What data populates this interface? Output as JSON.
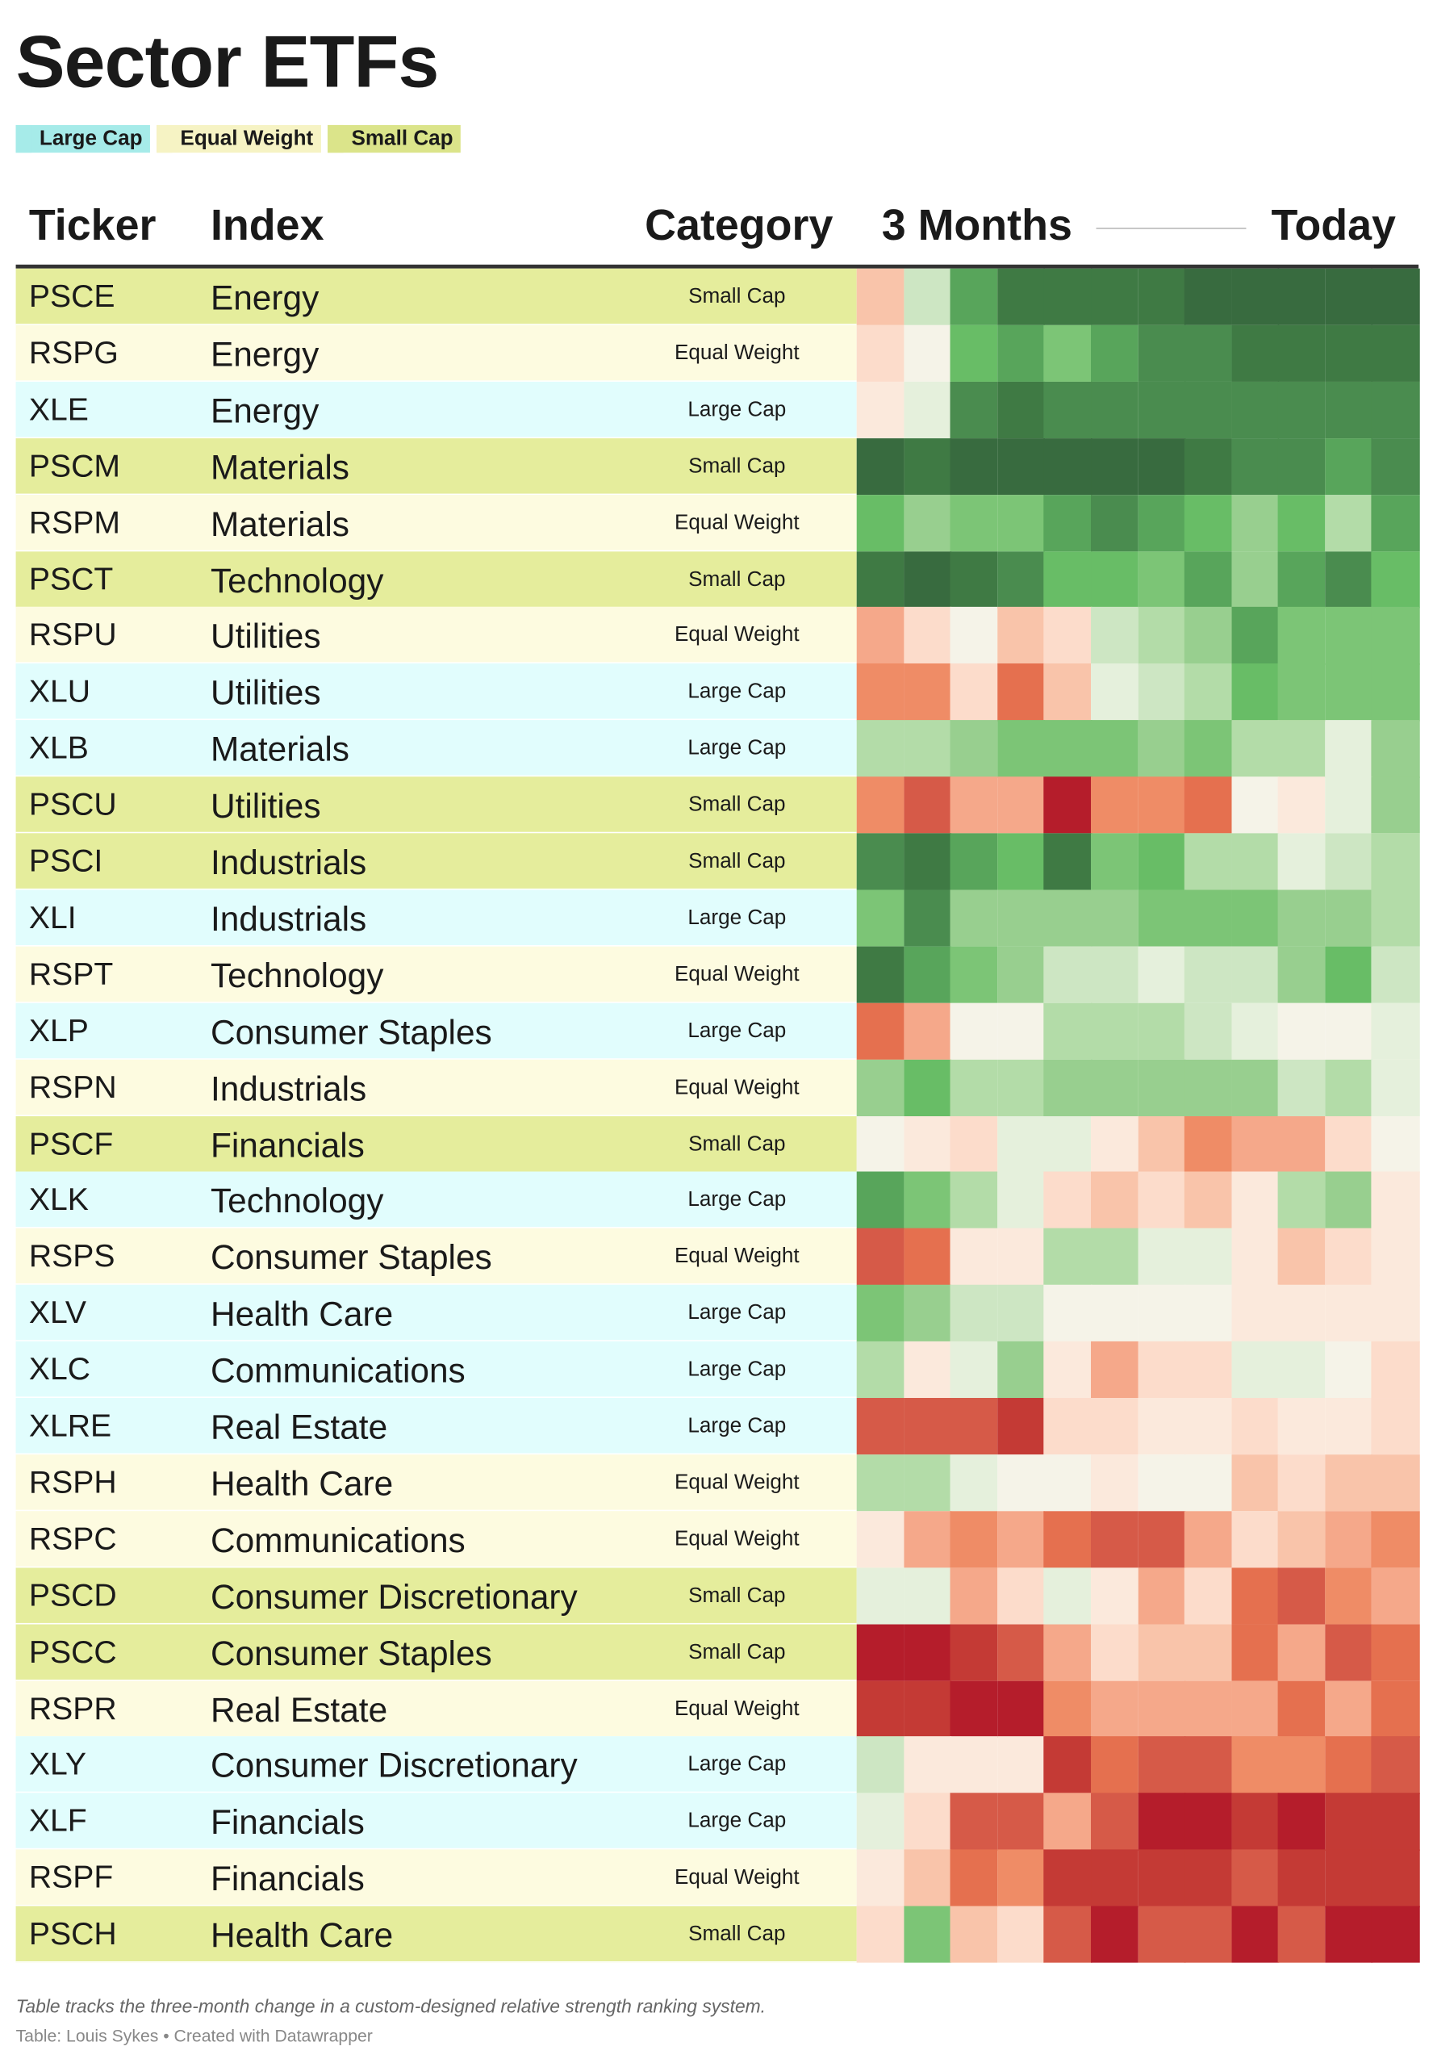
{
  "title": "Sector ETFs",
  "legend": [
    {
      "label": "Large Cap",
      "color": "#a6ebe9",
      "row_color": "#e1fdfd"
    },
    {
      "label": "Equal Weight",
      "color": "#f6f3c4",
      "row_color": "#fdfbe0"
    },
    {
      "label": "Small Cap",
      "color": "#dbe48a",
      "row_color": "#e5ed9c"
    }
  ],
  "header": {
    "ticker": "Ticker",
    "index": "Index",
    "category": "Category",
    "start": "3 Months",
    "end": "Today"
  },
  "rows": [
    {
      "ticker": "PSCE",
      "index": "Energy",
      "category": "Small Cap",
      "cells": [
        "#f9c4aa",
        "#cde6c3",
        "#58a55b",
        "#3f7a44",
        "#3f7a44",
        "#3f7a44",
        "#3f7a44",
        "#386b3f",
        "#386b3f",
        "#386b3f",
        "#386b3f",
        "#386b3f"
      ]
    },
    {
      "ticker": "RSPG",
      "index": "Energy",
      "category": "Equal Weight",
      "cells": [
        "#fcdccb",
        "#f5f3e8",
        "#68bd66",
        "#58a55b",
        "#7cc576",
        "#58a55b",
        "#4a8c4f",
        "#4a8c4f",
        "#3f7a44",
        "#3f7a44",
        "#3f7a44",
        "#3f7a44"
      ]
    },
    {
      "ticker": "XLE",
      "index": "Energy",
      "category": "Large Cap",
      "cells": [
        "#fbe9dc",
        "#e5f0dc",
        "#4a8c4f",
        "#3f7a44",
        "#4a8c4f",
        "#4a8c4f",
        "#4a8c4f",
        "#4a8c4f",
        "#4a8c4f",
        "#4a8c4f",
        "#4a8c4f",
        "#4a8c4f"
      ]
    },
    {
      "ticker": "PSCM",
      "index": "Materials",
      "category": "Small Cap",
      "cells": [
        "#386b3f",
        "#3f7a44",
        "#386b3f",
        "#386b3f",
        "#386b3f",
        "#386b3f",
        "#386b3f",
        "#3f7a44",
        "#4a8c4f",
        "#4a8c4f",
        "#58a55b",
        "#4a8c4f"
      ]
    },
    {
      "ticker": "RSPM",
      "index": "Materials",
      "category": "Equal Weight",
      "cells": [
        "#68bd66",
        "#98cf8f",
        "#7cc576",
        "#7cc576",
        "#58a55b",
        "#4a8c4f",
        "#58a55b",
        "#68bd66",
        "#98cf8f",
        "#68bd66",
        "#b3dca8",
        "#58a55b"
      ]
    },
    {
      "ticker": "PSCT",
      "index": "Technology",
      "category": "Small Cap",
      "cells": [
        "#3f7a44",
        "#386b3f",
        "#3f7a44",
        "#4a8c4f",
        "#68bd66",
        "#68bd66",
        "#7cc576",
        "#58a55b",
        "#98cf8f",
        "#58a55b",
        "#4a8c4f",
        "#68bd66"
      ]
    },
    {
      "ticker": "RSPU",
      "index": "Utilities",
      "category": "Equal Weight",
      "cells": [
        "#f5a88a",
        "#fcdccb",
        "#f5f3e8",
        "#f9c4aa",
        "#fcdccb",
        "#cde6c3",
        "#b3dca8",
        "#98cf8f",
        "#58a55b",
        "#7cc576",
        "#7cc576",
        "#7cc576"
      ]
    },
    {
      "ticker": "XLU",
      "index": "Utilities",
      "category": "Large Cap",
      "cells": [
        "#ef8c66",
        "#ef8c66",
        "#fcdccb",
        "#e5704f",
        "#f9c4aa",
        "#e5f0dc",
        "#cde6c3",
        "#b3dca8",
        "#68bd66",
        "#7cc576",
        "#7cc576",
        "#7cc576"
      ]
    },
    {
      "ticker": "XLB",
      "index": "Materials",
      "category": "Large Cap",
      "cells": [
        "#b3dca8",
        "#b3dca8",
        "#98cf8f",
        "#7cc576",
        "#7cc576",
        "#7cc576",
        "#98cf8f",
        "#7cc576",
        "#b3dca8",
        "#b3dca8",
        "#e5f0dc",
        "#98cf8f"
      ]
    },
    {
      "ticker": "PSCU",
      "index": "Utilities",
      "category": "Small Cap",
      "cells": [
        "#ef8c66",
        "#d65a48",
        "#f5a88a",
        "#f5a88a",
        "#b51d2b",
        "#ef8c66",
        "#ef8c66",
        "#e5704f",
        "#f5f3e8",
        "#fbe9dc",
        "#e5f0dc",
        "#98cf8f"
      ]
    },
    {
      "ticker": "PSCI",
      "index": "Industrials",
      "category": "Small Cap",
      "cells": [
        "#4a8c4f",
        "#3f7a44",
        "#58a55b",
        "#68bd66",
        "#3f7a44",
        "#7cc576",
        "#68bd66",
        "#b3dca8",
        "#b3dca8",
        "#e5f0dc",
        "#cde6c3",
        "#b3dca8"
      ]
    },
    {
      "ticker": "XLI",
      "index": "Industrials",
      "category": "Large Cap",
      "cells": [
        "#7cc576",
        "#4a8c4f",
        "#98cf8f",
        "#98cf8f",
        "#98cf8f",
        "#98cf8f",
        "#7cc576",
        "#7cc576",
        "#7cc576",
        "#98cf8f",
        "#98cf8f",
        "#b3dca8"
      ]
    },
    {
      "ticker": "RSPT",
      "index": "Technology",
      "category": "Equal Weight",
      "cells": [
        "#3f7a44",
        "#58a55b",
        "#7cc576",
        "#98cf8f",
        "#cde6c3",
        "#cde6c3",
        "#e5f0dc",
        "#cde6c3",
        "#cde6c3",
        "#98cf8f",
        "#68bd66",
        "#cde6c3"
      ]
    },
    {
      "ticker": "XLP",
      "index": "Consumer Staples",
      "category": "Large Cap",
      "cells": [
        "#e5704f",
        "#f5a88a",
        "#f5f3e8",
        "#f5f3e8",
        "#b3dca8",
        "#b3dca8",
        "#b3dca8",
        "#cde6c3",
        "#e5f0dc",
        "#f5f3e8",
        "#f5f3e8",
        "#e5f0dc"
      ]
    },
    {
      "ticker": "RSPN",
      "index": "Industrials",
      "category": "Equal Weight",
      "cells": [
        "#98cf8f",
        "#68bd66",
        "#b3dca8",
        "#b3dca8",
        "#98cf8f",
        "#98cf8f",
        "#98cf8f",
        "#98cf8f",
        "#98cf8f",
        "#cde6c3",
        "#b3dca8",
        "#e5f0dc"
      ]
    },
    {
      "ticker": "PSCF",
      "index": "Financials",
      "category": "Small Cap",
      "cells": [
        "#f5f3e8",
        "#fbe9dc",
        "#fcdccb",
        "#e5f0dc",
        "#e5f0dc",
        "#fbe9dc",
        "#f9c4aa",
        "#ef8c66",
        "#f5a88a",
        "#f5a88a",
        "#fcdccb",
        "#f5f3e8"
      ]
    },
    {
      "ticker": "XLK",
      "index": "Technology",
      "category": "Large Cap",
      "cells": [
        "#58a55b",
        "#7cc576",
        "#b3dca8",
        "#e5f0dc",
        "#fcdccb",
        "#f9c4aa",
        "#fcdccb",
        "#f9c4aa",
        "#fbe9dc",
        "#b3dca8",
        "#98cf8f",
        "#fbe9dc"
      ]
    },
    {
      "ticker": "RSPS",
      "index": "Consumer Staples",
      "category": "Equal Weight",
      "cells": [
        "#d65a48",
        "#e5704f",
        "#fbe9dc",
        "#fbe9dc",
        "#b3dca8",
        "#b3dca8",
        "#e5f0dc",
        "#e5f0dc",
        "#fbe9dc",
        "#f9c4aa",
        "#fcdccb",
        "#fbe9dc"
      ]
    },
    {
      "ticker": "XLV",
      "index": "Health Care",
      "category": "Large Cap",
      "cells": [
        "#7cc576",
        "#98cf8f",
        "#cde6c3",
        "#cde6c3",
        "#f5f3e8",
        "#f5f3e8",
        "#f5f3e8",
        "#f5f3e8",
        "#fbe9dc",
        "#fbe9dc",
        "#fbe9dc",
        "#fbe9dc"
      ]
    },
    {
      "ticker": "XLC",
      "index": "Communications",
      "category": "Large Cap",
      "cells": [
        "#b3dca8",
        "#fbe9dc",
        "#e5f0dc",
        "#98cf8f",
        "#fbe9dc",
        "#f5a88a",
        "#fcdccb",
        "#fcdccb",
        "#e5f0dc",
        "#e5f0dc",
        "#f5f3e8",
        "#fcdccb"
      ]
    },
    {
      "ticker": "XLRE",
      "index": "Real Estate",
      "category": "Large Cap",
      "cells": [
        "#d65a48",
        "#d65a48",
        "#d65a48",
        "#c43a35",
        "#fcdccb",
        "#fcdccb",
        "#fbe9dc",
        "#fbe9dc",
        "#fcdccb",
        "#fbe9dc",
        "#fbe9dc",
        "#fcdccb"
      ]
    },
    {
      "ticker": "RSPH",
      "index": "Health Care",
      "category": "Equal Weight",
      "cells": [
        "#b3dca8",
        "#b3dca8",
        "#e5f0dc",
        "#f5f3e8",
        "#f5f3e8",
        "#fbe9dc",
        "#f5f3e8",
        "#f5f3e8",
        "#f9c4aa",
        "#fcdccb",
        "#f9c4aa",
        "#f9c4aa"
      ]
    },
    {
      "ticker": "RSPC",
      "index": "Communications",
      "category": "Equal Weight",
      "cells": [
        "#fbe9dc",
        "#f5a88a",
        "#ef8c66",
        "#f5a88a",
        "#e5704f",
        "#d65a48",
        "#d65a48",
        "#f5a88a",
        "#fcdccb",
        "#f9c4aa",
        "#f5a88a",
        "#ef8c66"
      ]
    },
    {
      "ticker": "PSCD",
      "index": "Consumer Discretionary",
      "category": "Small Cap",
      "cells": [
        "#e5f0dc",
        "#e5f0dc",
        "#f5a88a",
        "#fcdccb",
        "#e5f0dc",
        "#fbe9dc",
        "#f5a88a",
        "#fcdccb",
        "#e5704f",
        "#d65a48",
        "#ef8c66",
        "#f5a88a"
      ]
    },
    {
      "ticker": "PSCC",
      "index": "Consumer Staples",
      "category": "Small Cap",
      "cells": [
        "#b51d2b",
        "#b51d2b",
        "#c43a35",
        "#d65a48",
        "#f5a88a",
        "#fcdccb",
        "#f9c4aa",
        "#f9c4aa",
        "#e5704f",
        "#f5a88a",
        "#d65a48",
        "#e5704f"
      ]
    },
    {
      "ticker": "RSPR",
      "index": "Real Estate",
      "category": "Equal Weight",
      "cells": [
        "#c43a35",
        "#c43a35",
        "#b51d2b",
        "#b51d2b",
        "#ef8c66",
        "#f5a88a",
        "#f5a88a",
        "#f5a88a",
        "#f5a88a",
        "#e5704f",
        "#f5a88a",
        "#e5704f"
      ]
    },
    {
      "ticker": "XLY",
      "index": "Consumer Discretionary",
      "category": "Large Cap",
      "cells": [
        "#cde6c3",
        "#fbe9dc",
        "#fbe9dc",
        "#fbe9dc",
        "#c43a35",
        "#e5704f",
        "#d65a48",
        "#d65a48",
        "#ef8c66",
        "#ef8c66",
        "#e5704f",
        "#d65a48"
      ]
    },
    {
      "ticker": "XLF",
      "index": "Financials",
      "category": "Large Cap",
      "cells": [
        "#e5f0dc",
        "#fcdccb",
        "#d65a48",
        "#d65a48",
        "#f5a88a",
        "#d65a48",
        "#b51d2b",
        "#b51d2b",
        "#c43a35",
        "#b51d2b",
        "#c43a35",
        "#c43a35"
      ]
    },
    {
      "ticker": "RSPF",
      "index": "Financials",
      "category": "Equal Weight",
      "cells": [
        "#fbe9dc",
        "#f9c4aa",
        "#e5704f",
        "#ef8c66",
        "#c43a35",
        "#c43a35",
        "#c43a35",
        "#c43a35",
        "#d65a48",
        "#c43a35",
        "#c43a35",
        "#c43a35"
      ]
    },
    {
      "ticker": "PSCH",
      "index": "Health Care",
      "category": "Small Cap",
      "cells": [
        "#fcdccb",
        "#7cc576",
        "#f9c4aa",
        "#fcdccb",
        "#d65a48",
        "#b51d2b",
        "#d65a48",
        "#d65a48",
        "#b51d2b",
        "#d65a48",
        "#b51d2b",
        "#b51d2b"
      ]
    }
  ],
  "footer": {
    "note": "Table tracks the three-month change in a custom-designed relative strength ranking system.",
    "source": "Table: Louis Sykes • Created with Datawrapper"
  }
}
